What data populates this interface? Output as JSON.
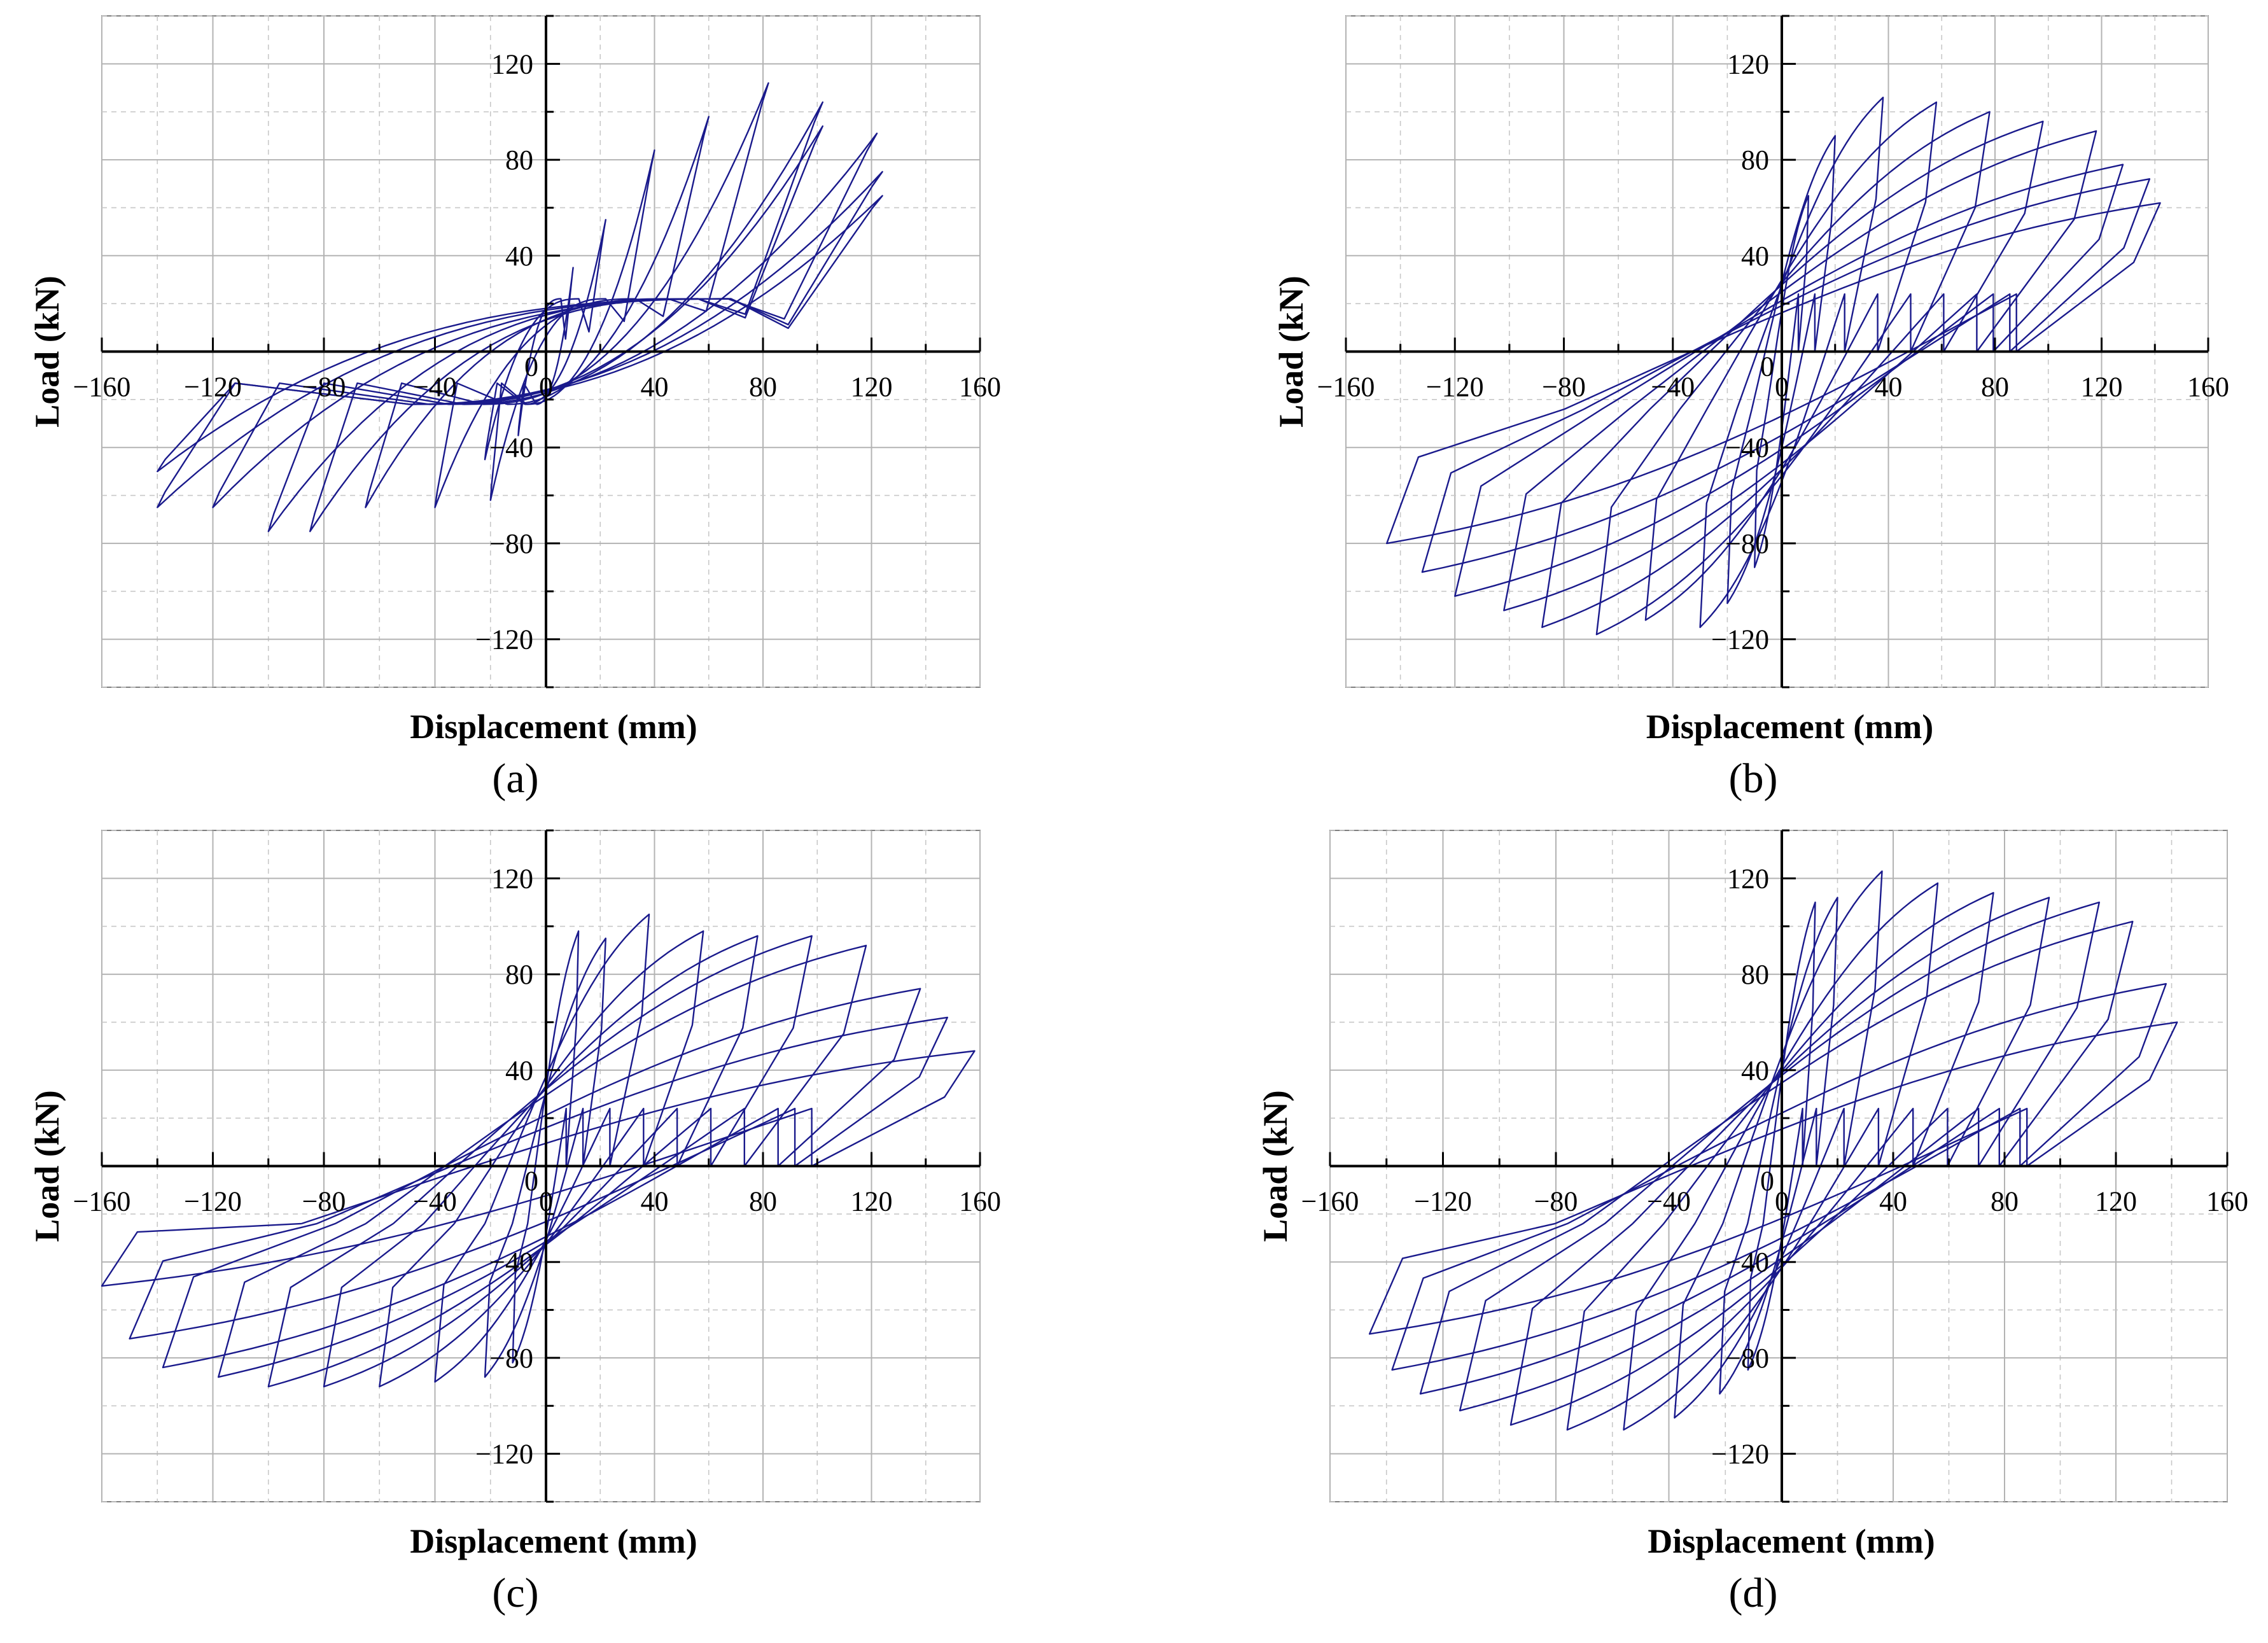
{
  "figure": {
    "panel_labels": [
      "(a)",
      "(b)",
      "(c)",
      "(d)"
    ],
    "colors": {
      "curve": "#1a1a8c",
      "axis": "#000000",
      "grid_major": "#b3b3b3",
      "grid_minor": "#c8c8c8",
      "frame": "#7f7f7f"
    }
  },
  "chart_data": [
    {
      "type": "line",
      "panel": "(a)",
      "title": "",
      "xlabel": "Displacement (mm)",
      "ylabel": "Load (kN)",
      "xlim": [
        -160,
        160
      ],
      "ylim": [
        -140,
        140
      ],
      "xticks": [
        -160,
        -120,
        -80,
        -40,
        0,
        40,
        80,
        120,
        160
      ],
      "yticks": [
        -120,
        -80,
        -40,
        0,
        40,
        80,
        120
      ],
      "xtick_labels": [
        "−160",
        "−120",
        "−80",
        "−40",
        "0",
        "40",
        "80",
        "120",
        "160"
      ],
      "ytick_labels": [
        "−120",
        "−80",
        "−40",
        "0",
        "40",
        "80",
        "120"
      ],
      "grid": true,
      "series": [
        {
          "name": "hysteresis",
          "style": "pinched",
          "loops": [
            {
              "dp": 10,
              "fp": 35,
              "dn": -10,
              "fn": -35
            },
            {
              "dp": 22,
              "fp": 55,
              "dn": -22,
              "fn": -45
            },
            {
              "dp": 40,
              "fp": 84,
              "dn": -20,
              "fn": -62
            },
            {
              "dp": 60,
              "fp": 98,
              "dn": -40,
              "fn": -65
            },
            {
              "dp": 82,
              "fp": 112,
              "dn": -65,
              "fn": -65
            },
            {
              "dp": 102,
              "fp": 104,
              "dn": -85,
              "fn": -75
            },
            {
              "dp": 102,
              "fp": 94,
              "dn": -100,
              "fn": -75
            },
            {
              "dp": 122,
              "fp": 91,
              "dn": -120,
              "fn": -65
            },
            {
              "dp": 124,
              "fp": 75,
              "dn": -140,
              "fn": -65
            },
            {
              "dp": 124,
              "fp": 65,
              "dn": -140,
              "fn": -50
            }
          ]
        }
      ]
    },
    {
      "type": "line",
      "panel": "(b)",
      "title": "",
      "xlabel": "Displacement (mm)",
      "ylabel": "Load (kN)",
      "xlim": [
        -160,
        160
      ],
      "ylim": [
        -140,
        140
      ],
      "xticks": [
        -160,
        -120,
        -80,
        -40,
        0,
        40,
        80,
        120,
        160
      ],
      "yticks": [
        -120,
        -80,
        -40,
        0,
        40,
        80,
        120
      ],
      "xtick_labels": [
        "−160",
        "−120",
        "−80",
        "−40",
        "0",
        "40",
        "80",
        "120",
        "160"
      ],
      "ytick_labels": [
        "−120",
        "−80",
        "−40",
        "0",
        "40",
        "80",
        "120"
      ],
      "grid": true,
      "series": [
        {
          "name": "hysteresis",
          "style": "full",
          "loops": [
            {
              "dp": 10,
              "fp": 65,
              "dn": -10,
              "fn": -90
            },
            {
              "dp": 20,
              "fp": 90,
              "dn": -20,
              "fn": -105
            },
            {
              "dp": 38,
              "fp": 106,
              "dn": -30,
              "fn": -115
            },
            {
              "dp": 58,
              "fp": 104,
              "dn": -50,
              "fn": -112
            },
            {
              "dp": 78,
              "fp": 100,
              "dn": -68,
              "fn": -118
            },
            {
              "dp": 98,
              "fp": 96,
              "dn": -88,
              "fn": -115
            },
            {
              "dp": 118,
              "fp": 92,
              "dn": -102,
              "fn": -108
            },
            {
              "dp": 128,
              "fp": 78,
              "dn": -120,
              "fn": -102
            },
            {
              "dp": 138,
              "fp": 72,
              "dn": -132,
              "fn": -92
            },
            {
              "dp": 142,
              "fp": 62,
              "dn": -145,
              "fn": -80
            }
          ]
        }
      ]
    },
    {
      "type": "line",
      "panel": "(c)",
      "title": "",
      "xlabel": "Displacement (mm)",
      "ylabel": "Load (kN)",
      "xlim": [
        -160,
        160
      ],
      "ylim": [
        -140,
        140
      ],
      "xticks": [
        -160,
        -120,
        -80,
        -40,
        0,
        40,
        80,
        120,
        160
      ],
      "yticks": [
        -120,
        -80,
        -40,
        0,
        40,
        80,
        120
      ],
      "xtick_labels": [
        "−160",
        "−120",
        "−80",
        "−40",
        "0",
        "40",
        "80",
        "120",
        "160"
      ],
      "ytick_labels": [
        "−120",
        "−80",
        "−40",
        "0",
        "40",
        "80",
        "120"
      ],
      "grid": true,
      "series": [
        {
          "name": "hysteresis",
          "style": "full",
          "loops": [
            {
              "dp": 12,
              "fp": 98,
              "dn": -12,
              "fn": -82
            },
            {
              "dp": 22,
              "fp": 95,
              "dn": -22,
              "fn": -88
            },
            {
              "dp": 38,
              "fp": 105,
              "dn": -40,
              "fn": -90
            },
            {
              "dp": 58,
              "fp": 98,
              "dn": -60,
              "fn": -92
            },
            {
              "dp": 78,
              "fp": 96,
              "dn": -80,
              "fn": -92
            },
            {
              "dp": 98,
              "fp": 96,
              "dn": -100,
              "fn": -92
            },
            {
              "dp": 118,
              "fp": 92,
              "dn": -118,
              "fn": -88
            },
            {
              "dp": 138,
              "fp": 74,
              "dn": -138,
              "fn": -84
            },
            {
              "dp": 148,
              "fp": 62,
              "dn": -150,
              "fn": -72
            },
            {
              "dp": 158,
              "fp": 48,
              "dn": -160,
              "fn": -50
            }
          ]
        }
      ]
    },
    {
      "type": "line",
      "panel": "(d)",
      "title": "",
      "xlabel": "Displacement (mm)",
      "ylabel": "Load (kN)",
      "xlim": [
        -160,
        160
      ],
      "ylim": [
        -140,
        140
      ],
      "xticks": [
        -160,
        -120,
        -80,
        -40,
        0,
        40,
        80,
        120,
        160
      ],
      "yticks": [
        -120,
        -80,
        -40,
        0,
        40,
        80,
        120
      ],
      "xtick_labels": [
        "−160",
        "−120",
        "−80",
        "−40",
        "0",
        "40",
        "80",
        "120",
        "160"
      ],
      "ytick_labels": [
        "−120",
        "−80",
        "−40",
        "0",
        "40",
        "80",
        "120"
      ],
      "grid": true,
      "series": [
        {
          "name": "hysteresis",
          "style": "full",
          "loops": [
            {
              "dp": 12,
              "fp": 110,
              "dn": -12,
              "fn": -85
            },
            {
              "dp": 20,
              "fp": 112,
              "dn": -22,
              "fn": -95
            },
            {
              "dp": 36,
              "fp": 123,
              "dn": -38,
              "fn": -105
            },
            {
              "dp": 56,
              "fp": 118,
              "dn": -56,
              "fn": -110
            },
            {
              "dp": 76,
              "fp": 114,
              "dn": -76,
              "fn": -110
            },
            {
              "dp": 96,
              "fp": 112,
              "dn": -96,
              "fn": -108
            },
            {
              "dp": 114,
              "fp": 110,
              "dn": -114,
              "fn": -102
            },
            {
              "dp": 126,
              "fp": 102,
              "dn": -128,
              "fn": -95
            },
            {
              "dp": 138,
              "fp": 76,
              "dn": -138,
              "fn": -85
            },
            {
              "dp": 142,
              "fp": 60,
              "dn": -146,
              "fn": -70
            }
          ]
        }
      ]
    }
  ]
}
